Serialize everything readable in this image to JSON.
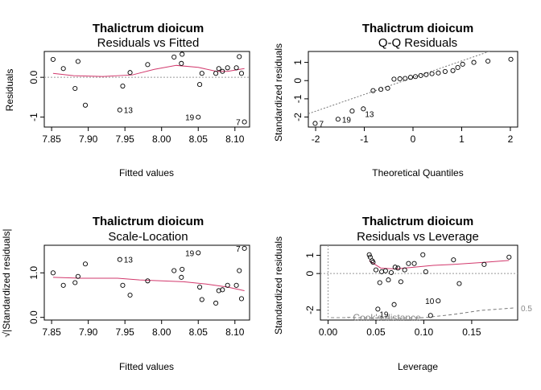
{
  "figure": {
    "species": "Thalictrum dioicum"
  },
  "chart_data": [
    {
      "type": "scatter",
      "species": "Thalictrum dioicum",
      "title": "Residuals vs Fitted",
      "xlabel": "Fitted values",
      "ylabel": "Residuals",
      "xlim": [
        7.84,
        8.12
      ],
      "ylim": [
        -1.25,
        0.65
      ],
      "xticks": [
        7.85,
        7.9,
        7.95,
        8.0,
        8.05,
        8.1
      ],
      "xtick_labels": [
        "7.85",
        "7.90",
        "7.95",
        "8.00",
        "8.05",
        "8.10"
      ],
      "yticks": [
        -1.0,
        0.0
      ],
      "ytick_labels": [
        "-1",
        "0.0"
      ],
      "hline": 0,
      "points": [
        {
          "x": 7.852,
          "y": 0.45
        },
        {
          "x": 7.866,
          "y": 0.22
        },
        {
          "x": 7.882,
          "y": -0.28
        },
        {
          "x": 7.886,
          "y": 0.4
        },
        {
          "x": 7.896,
          "y": -0.7
        },
        {
          "x": 7.943,
          "y": -0.82
        },
        {
          "x": 7.947,
          "y": -0.22
        },
        {
          "x": 7.957,
          "y": 0.12
        },
        {
          "x": 7.981,
          "y": 0.32
        },
        {
          "x": 8.017,
          "y": 0.51
        },
        {
          "x": 8.027,
          "y": 0.35
        },
        {
          "x": 8.028,
          "y": 0.58
        },
        {
          "x": 8.05,
          "y": -1.0
        },
        {
          "x": 8.052,
          "y": -0.18
        },
        {
          "x": 8.055,
          "y": 0.1
        },
        {
          "x": 8.074,
          "y": 0.1
        },
        {
          "x": 8.078,
          "y": 0.22
        },
        {
          "x": 8.083,
          "y": 0.15
        },
        {
          "x": 8.09,
          "y": 0.24
        },
        {
          "x": 8.102,
          "y": 0.24
        },
        {
          "x": 8.106,
          "y": 0.52
        },
        {
          "x": 8.109,
          "y": 0.1
        },
        {
          "x": 8.113,
          "y": -1.12
        }
      ],
      "smoother": [
        {
          "x": 7.852,
          "y": 0.1
        },
        {
          "x": 7.88,
          "y": 0.04
        },
        {
          "x": 7.92,
          "y": 0.02
        },
        {
          "x": 7.96,
          "y": 0.06
        },
        {
          "x": 7.99,
          "y": 0.2
        },
        {
          "x": 8.02,
          "y": 0.3
        },
        {
          "x": 8.05,
          "y": 0.25
        },
        {
          "x": 8.075,
          "y": 0.15
        },
        {
          "x": 8.09,
          "y": 0.15
        },
        {
          "x": 8.113,
          "y": 0.22
        }
      ],
      "labels": [
        {
          "text": "13",
          "x": 7.943,
          "y": -0.82,
          "side": "right"
        },
        {
          "text": "19",
          "x": 8.05,
          "y": -1.0,
          "side": "left"
        },
        {
          "text": "7",
          "x": 8.113,
          "y": -1.12,
          "side": "left"
        }
      ]
    },
    {
      "type": "scatter",
      "species": "Thalictrum dioicum",
      "title": "Q-Q Residuals",
      "xlabel": "Theoretical Quantiles",
      "ylabel": "Standardized residuals",
      "xlim": [
        -2.15,
        2.15
      ],
      "ylim": [
        -2.55,
        1.6
      ],
      "xticks": [
        -2,
        -1,
        0,
        1,
        2
      ],
      "xtick_labels": [
        "-2",
        "-1",
        "0",
        "1",
        "2"
      ],
      "yticks": [
        -2,
        -1,
        0,
        1
      ],
      "ytick_labels": [
        "-2",
        "-1",
        "0",
        "1"
      ],
      "refline": {
        "slope": 0.92,
        "intercept": 0.16
      },
      "points": [
        {
          "x": -2.01,
          "y": -2.35
        },
        {
          "x": -1.54,
          "y": -2.12
        },
        {
          "x": -1.25,
          "y": -1.67
        },
        {
          "x": -1.02,
          "y": -1.55
        },
        {
          "x": -0.82,
          "y": -0.55
        },
        {
          "x": -0.66,
          "y": -0.48
        },
        {
          "x": -0.52,
          "y": -0.42
        },
        {
          "x": -0.39,
          "y": 0.08
        },
        {
          "x": -0.27,
          "y": 0.1
        },
        {
          "x": -0.16,
          "y": 0.12
        },
        {
          "x": -0.05,
          "y": 0.18
        },
        {
          "x": 0.05,
          "y": 0.22
        },
        {
          "x": 0.16,
          "y": 0.28
        },
        {
          "x": 0.27,
          "y": 0.33
        },
        {
          "x": 0.39,
          "y": 0.38
        },
        {
          "x": 0.52,
          "y": 0.42
        },
        {
          "x": 0.66,
          "y": 0.5
        },
        {
          "x": 0.82,
          "y": 0.55
        },
        {
          "x": 1.02,
          "y": 0.9
        },
        {
          "x": 1.25,
          "y": 1.0
        },
        {
          "x": 1.54,
          "y": 1.07
        },
        {
          "x": 2.01,
          "y": 1.17
        },
        {
          "x": 0.92,
          "y": 0.72
        }
      ],
      "labels": [
        {
          "text": "7",
          "x": -2.01,
          "y": -2.35,
          "side": "right"
        },
        {
          "text": "19",
          "x": -1.54,
          "y": -2.12,
          "side": "right"
        },
        {
          "text": "13",
          "x": -1.02,
          "y": -1.55,
          "side": "below"
        }
      ]
    },
    {
      "type": "scatter",
      "species": "Thalictrum dioicum",
      "title": "Scale-Location",
      "xlabel": "Fitted values",
      "ylabel": "√|Standardized residuals|",
      "xlim": [
        7.84,
        8.12
      ],
      "ylim": [
        -0.06,
        1.62
      ],
      "xticks": [
        7.85,
        7.9,
        7.95,
        8.0,
        8.05,
        8.1
      ],
      "xtick_labels": [
        "7.85",
        "7.90",
        "7.95",
        "8.00",
        "8.05",
        "8.10"
      ],
      "yticks": [
        0.0,
        1.0
      ],
      "ytick_labels": [
        "0.0",
        "1.0"
      ],
      "points": [
        {
          "x": 7.852,
          "y": 1.0
        },
        {
          "x": 7.866,
          "y": 0.72
        },
        {
          "x": 7.882,
          "y": 0.78
        },
        {
          "x": 7.886,
          "y": 0.92
        },
        {
          "x": 7.896,
          "y": 1.2
        },
        {
          "x": 7.943,
          "y": 1.3
        },
        {
          "x": 7.947,
          "y": 0.72
        },
        {
          "x": 7.957,
          "y": 0.5
        },
        {
          "x": 7.981,
          "y": 0.82
        },
        {
          "x": 8.017,
          "y": 1.05
        },
        {
          "x": 8.027,
          "y": 0.9
        },
        {
          "x": 8.028,
          "y": 1.08
        },
        {
          "x": 8.05,
          "y": 1.45
        },
        {
          "x": 8.052,
          "y": 0.68
        },
        {
          "x": 8.055,
          "y": 0.4
        },
        {
          "x": 8.074,
          "y": 0.32
        },
        {
          "x": 8.078,
          "y": 0.6
        },
        {
          "x": 8.083,
          "y": 0.62
        },
        {
          "x": 8.09,
          "y": 0.72
        },
        {
          "x": 8.102,
          "y": 0.72
        },
        {
          "x": 8.106,
          "y": 1.05
        },
        {
          "x": 8.109,
          "y": 0.42
        },
        {
          "x": 8.113,
          "y": 1.55
        }
      ],
      "smoother": [
        {
          "x": 7.852,
          "y": 0.9
        },
        {
          "x": 7.89,
          "y": 0.88
        },
        {
          "x": 7.94,
          "y": 0.88
        },
        {
          "x": 7.97,
          "y": 0.84
        },
        {
          "x": 8.0,
          "y": 0.82
        },
        {
          "x": 8.03,
          "y": 0.8
        },
        {
          "x": 8.06,
          "y": 0.75
        },
        {
          "x": 8.09,
          "y": 0.68
        },
        {
          "x": 8.113,
          "y": 0.6
        }
      ],
      "labels": [
        {
          "text": "13",
          "x": 7.943,
          "y": 1.3,
          "side": "right"
        },
        {
          "text": "19",
          "x": 8.05,
          "y": 1.45,
          "side": "left"
        },
        {
          "text": "7",
          "x": 8.113,
          "y": 1.55,
          "side": "left"
        }
      ]
    },
    {
      "type": "scatter",
      "species": "Thalictrum dioicum",
      "title": "Residuals vs Leverage",
      "xlabel": "Leverage",
      "ylabel": "Standardized residuals",
      "xlim": [
        -0.008,
        0.198
      ],
      "ylim": [
        -2.55,
        1.55
      ],
      "xticks": [
        0.0,
        0.05,
        0.1,
        0.15
      ],
      "xtick_labels": [
        "0.00",
        "0.05",
        "0.10",
        "0.15"
      ],
      "yticks": [
        -2,
        0,
        1
      ],
      "ytick_labels": [
        "-2",
        "0",
        "1"
      ],
      "hline": 0,
      "vline": 0,
      "cooks_legend": "Cook's distance",
      "cooks_label": "0.5",
      "points": [
        {
          "x": 0.043,
          "y": 1.03
        },
        {
          "x": 0.044,
          "y": 0.9
        },
        {
          "x": 0.046,
          "y": 0.7
        },
        {
          "x": 0.047,
          "y": 0.62
        },
        {
          "x": 0.05,
          "y": 0.2
        },
        {
          "x": 0.052,
          "y": -1.95
        },
        {
          "x": 0.054,
          "y": -0.5
        },
        {
          "x": 0.056,
          "y": 0.1
        },
        {
          "x": 0.06,
          "y": 0.15
        },
        {
          "x": 0.063,
          "y": -0.35
        },
        {
          "x": 0.066,
          "y": 0.05
        },
        {
          "x": 0.069,
          "y": -1.7
        },
        {
          "x": 0.07,
          "y": 0.35
        },
        {
          "x": 0.073,
          "y": 0.3
        },
        {
          "x": 0.076,
          "y": -0.45
        },
        {
          "x": 0.08,
          "y": 0.2
        },
        {
          "x": 0.084,
          "y": 0.55
        },
        {
          "x": 0.09,
          "y": 0.55
        },
        {
          "x": 0.099,
          "y": 1.03
        },
        {
          "x": 0.102,
          "y": 0.1
        },
        {
          "x": 0.107,
          "y": -2.3
        },
        {
          "x": 0.115,
          "y": -1.5
        },
        {
          "x": 0.131,
          "y": 0.75
        },
        {
          "x": 0.137,
          "y": -0.55
        },
        {
          "x": 0.163,
          "y": 0.5
        },
        {
          "x": 0.189,
          "y": 0.9
        }
      ],
      "smoother": [
        {
          "x": 0.043,
          "y": 0.7
        },
        {
          "x": 0.055,
          "y": 0.3
        },
        {
          "x": 0.07,
          "y": 0.25
        },
        {
          "x": 0.09,
          "y": 0.35
        },
        {
          "x": 0.11,
          "y": 0.45
        },
        {
          "x": 0.13,
          "y": 0.5
        },
        {
          "x": 0.16,
          "y": 0.6
        },
        {
          "x": 0.189,
          "y": 0.72
        }
      ],
      "cooks_curve": [
        {
          "x": 0.02,
          "y": -2.4
        },
        {
          "x": 0.06,
          "y": -2.45
        },
        {
          "x": 0.1,
          "y": -2.42
        },
        {
          "x": 0.13,
          "y": -2.25
        },
        {
          "x": 0.16,
          "y": -2.02
        },
        {
          "x": 0.196,
          "y": -1.88
        }
      ],
      "labels": [
        {
          "text": "19",
          "x": 0.052,
          "y": -1.95,
          "side": "below"
        },
        {
          "text": "10",
          "x": 0.115,
          "y": -1.5,
          "side": "left"
        }
      ]
    }
  ]
}
